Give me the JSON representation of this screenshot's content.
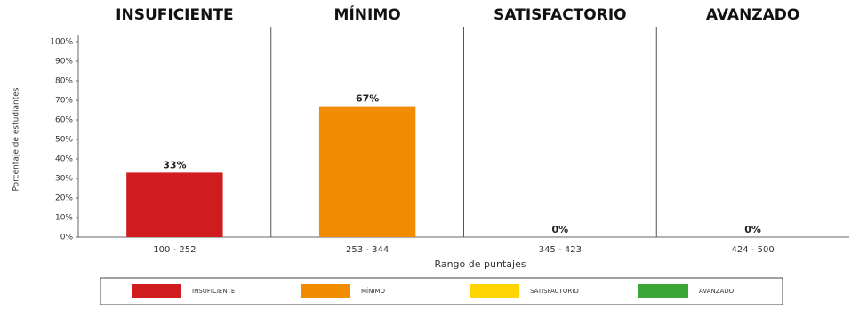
{
  "chart_data": {
    "type": "bar",
    "levels": [
      "INSUFICIENTE",
      "MÍNIMO",
      "SATISFACTORIO",
      "AVANZADO"
    ],
    "categories": [
      "100 - 252",
      "253 - 344",
      "345 - 423",
      "424 - 500"
    ],
    "values": [
      33,
      67,
      0,
      0
    ],
    "value_labels": [
      "33%",
      "67%",
      "0%",
      "0%"
    ],
    "colors": [
      "#d01c1f",
      "#f28c00",
      "#ffd400",
      "#3aa635"
    ],
    "x_label": "Rango de puntajes",
    "y_label": "Porcentaje de estudiantes",
    "ylim": [
      0,
      100
    ],
    "yticks": [
      {
        "value": 0,
        "label": "0%"
      },
      {
        "value": 10,
        "label": "10%"
      },
      {
        "value": 20,
        "label": "20%"
      },
      {
        "value": 30,
        "label": "30%"
      },
      {
        "value": 40,
        "label": "40%"
      },
      {
        "value": 50,
        "label": "50%"
      },
      {
        "value": 60,
        "label": "60%"
      },
      {
        "value": 70,
        "label": "70%"
      },
      {
        "value": 80,
        "label": "80%"
      },
      {
        "value": 90,
        "label": "90%"
      },
      {
        "value": 100,
        "label": "100%"
      }
    ],
    "legend": true
  }
}
